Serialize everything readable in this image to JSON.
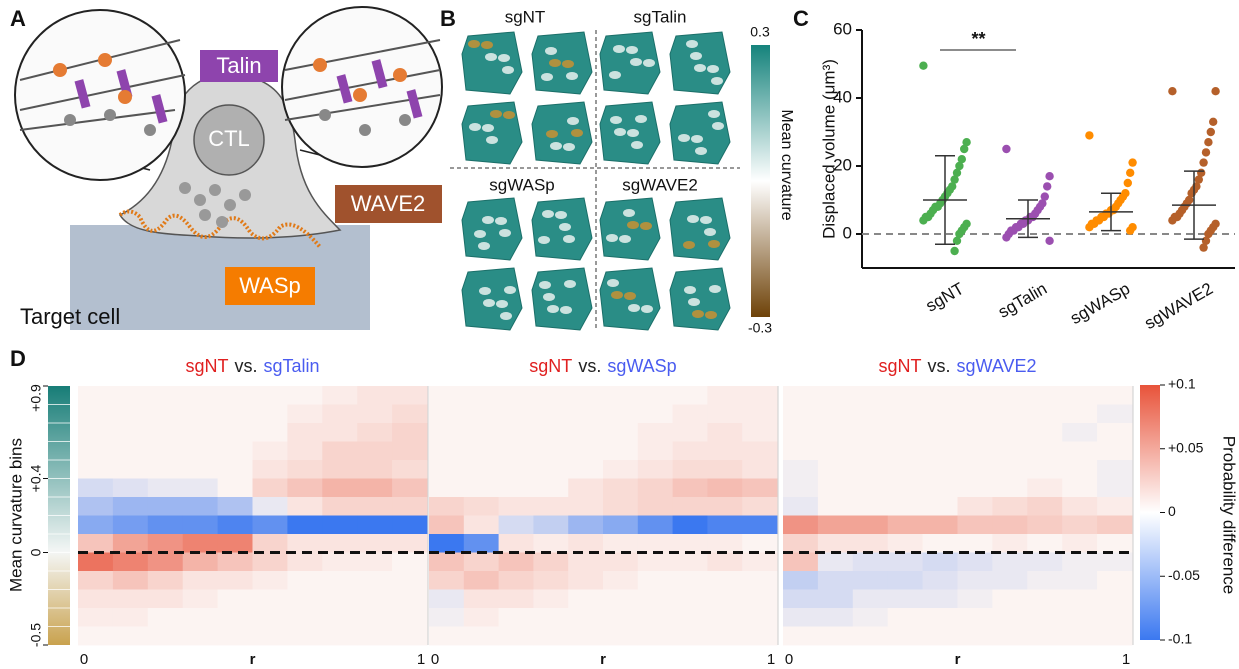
{
  "panel_labels": [
    "A",
    "B",
    "C",
    "D"
  ],
  "panel_a": {
    "talin": "Talin",
    "ctl": "CTL",
    "wave2": "WAVE2",
    "wasp": "WASp",
    "target": "Target cell"
  },
  "panel_b": {
    "groups": [
      "sgNT",
      "sgTalin",
      "sgWASp",
      "sgWAVE2"
    ],
    "colorbar_max": "0.3",
    "colorbar_min": "-0.3",
    "colorbar_label": "Mean curvature"
  },
  "chart_data": [
    {
      "type": "strip",
      "ylabel": "Displaced volume (μm³)",
      "ylim": [
        -10,
        60
      ],
      "yticks": [
        0,
        20,
        40,
        60
      ],
      "categories": [
        "sgNT",
        "sgTalin",
        "sgWASp",
        "sgWAVE2"
      ],
      "significance": "**",
      "series": [
        {
          "color": "#4caf50",
          "values": [
            49.5,
            27,
            25,
            22,
            20,
            18,
            16,
            14,
            13,
            12,
            11,
            10,
            9,
            8,
            8,
            7,
            6,
            5,
            5,
            4,
            3,
            2,
            1,
            0,
            -2,
            -5
          ],
          "mean": 10,
          "sd": 13
        },
        {
          "color": "#9b4fb0",
          "values": [
            25,
            17,
            14,
            11,
            9,
            8,
            7,
            6,
            5,
            5,
            4,
            4,
            3,
            3,
            2,
            2,
            1,
            1,
            0,
            -1,
            -2
          ],
          "mean": 4.5,
          "sd": 5.5
        },
        {
          "color": "#ff8c00",
          "values": [
            29,
            21,
            18,
            15,
            12,
            11,
            10,
            9,
            8,
            7,
            7,
            6,
            6,
            5,
            5,
            4,
            4,
            3,
            3,
            2,
            2,
            1
          ],
          "mean": 6.5,
          "sd": 5.5
        },
        {
          "color": "#b5602a",
          "values": [
            42,
            42,
            33,
            30,
            27,
            24,
            21,
            18,
            16,
            14,
            13,
            12,
            10,
            9,
            8,
            7,
            6,
            5,
            5,
            4,
            3,
            2,
            1,
            0,
            -2,
            -4
          ],
          "mean": 8.5,
          "sd": 10
        }
      ]
    },
    {
      "type": "heatmap",
      "ylabel": "Mean curvature bins",
      "ylim": [
        -0.5,
        0.9
      ],
      "yticks": [
        {
          "value": 0.9,
          "label": "+0.9"
        },
        {
          "value": 0.4,
          "label": "+0.4"
        },
        0,
        -0.5
      ],
      "xlim": [
        0,
        1
      ],
      "xticks": [
        0,
        1
      ],
      "xlabel": "r",
      "colorbar": {
        "label": "Probability difference",
        "lim": [
          -0.1,
          0.1
        ],
        "ticks": [
          {
            "value": 0.1,
            "label": "+0.1"
          },
          {
            "value": 0.05,
            "label": "+0.05"
          },
          0,
          -0.05,
          -0.1
        ]
      },
      "panels": [
        {
          "title": [
            "sgNT",
            "vs.",
            "sgTalin"
          ],
          "title_colors": [
            "#e02020",
            "#222222",
            "#4a5cf0"
          ],
          "values": [
            [
              0,
              0,
              0,
              0,
              0,
              0,
              0,
              0.005,
              0.01,
              0.01
            ],
            [
              0,
              0,
              0,
              0,
              0,
              0,
              0.005,
              0.01,
              0.01,
              0.015
            ],
            [
              0,
              0,
              0,
              0,
              0,
              0,
              0.01,
              0.01,
              0.015,
              0.02
            ],
            [
              0,
              0,
              0,
              0,
              0,
              0.005,
              0.01,
              0.02,
              0.02,
              0.02
            ],
            [
              0,
              0,
              0,
              0,
              0,
              0.01,
              0.015,
              0.02,
              0.02,
              0.015
            ],
            [
              -0.02,
              -0.015,
              -0.01,
              -0.01,
              0,
              0.02,
              0.03,
              0.04,
              0.04,
              0.03
            ],
            [
              -0.04,
              -0.05,
              -0.05,
              -0.05,
              -0.04,
              -0.01,
              0.01,
              0.02,
              0.02,
              0.02
            ],
            [
              -0.06,
              -0.07,
              -0.08,
              -0.08,
              -0.09,
              -0.08,
              -0.1,
              -0.1,
              -0.1,
              -0.1
            ],
            [
              0.03,
              0.05,
              0.06,
              0.07,
              0.07,
              0.02,
              0.01,
              0.01,
              0.01,
              0.01
            ],
            [
              0.08,
              0.07,
              0.06,
              0.04,
              0.03,
              0.02,
              0.01,
              0.005,
              0.005,
              0
            ],
            [
              0.02,
              0.03,
              0.02,
              0.01,
              0.01,
              0.005,
              0,
              0,
              0,
              0
            ],
            [
              0.01,
              0.01,
              0.01,
              0.005,
              0,
              0,
              0,
              0,
              0,
              0
            ],
            [
              0.005,
              0.005,
              0,
              0,
              0,
              0,
              0,
              0,
              0,
              0
            ],
            [
              0,
              0,
              0,
              0,
              0,
              0,
              0,
              0,
              0,
              0
            ]
          ]
        },
        {
          "title": [
            "sgNT",
            "vs.",
            "sgWASp"
          ],
          "title_colors": [
            "#e02020",
            "#222222",
            "#4a5cf0"
          ],
          "values": [
            [
              0,
              0,
              0,
              0,
              0,
              0,
              0,
              0,
              0.005,
              0.005
            ],
            [
              0,
              0,
              0,
              0,
              0,
              0,
              0,
              0.005,
              0.005,
              0.005
            ],
            [
              0,
              0,
              0,
              0,
              0,
              0,
              0.005,
              0.005,
              0.01,
              0.005
            ],
            [
              0,
              0,
              0,
              0,
              0,
              0,
              0.005,
              0.01,
              0.01,
              0.01
            ],
            [
              0,
              0,
              0,
              0,
              0,
              0.005,
              0.01,
              0.015,
              0.015,
              0.01
            ],
            [
              0,
              0,
              0,
              0,
              0.01,
              0.015,
              0.02,
              0.03,
              0.035,
              0.03
            ],
            [
              0.02,
              0.015,
              0.01,
              0.01,
              0.01,
              0.015,
              0.02,
              0.02,
              0.02,
              0.015
            ],
            [
              0.03,
              0.01,
              -0.02,
              -0.03,
              -0.05,
              -0.06,
              -0.08,
              -0.1,
              -0.09,
              -0.09
            ],
            [
              -0.1,
              -0.08,
              0.01,
              0.005,
              0.01,
              0.005,
              0.005,
              0.005,
              0.005,
              0
            ],
            [
              0.03,
              0.02,
              0.03,
              0.02,
              0.01,
              0.01,
              0.005,
              0.005,
              0.01,
              0.005
            ],
            [
              0.02,
              0.03,
              0.02,
              0.015,
              0.01,
              0.005,
              0,
              0,
              0,
              0
            ],
            [
              -0.01,
              0.01,
              0.01,
              0.005,
              0,
              0,
              0,
              0,
              0,
              0
            ],
            [
              -0.005,
              0.005,
              0,
              0,
              0,
              0,
              0,
              0,
              0,
              0
            ],
            [
              0,
              0,
              0,
              0,
              0,
              0,
              0,
              0,
              0,
              0
            ]
          ]
        },
        {
          "title": [
            "sgNT",
            "vs.",
            "sgWAVE2"
          ],
          "title_colors": [
            "#e02020",
            "#222222",
            "#4a5cf0"
          ],
          "values": [
            [
              0,
              0,
              0,
              0,
              0,
              0,
              0,
              0,
              0,
              0
            ],
            [
              0,
              0,
              0,
              0,
              0,
              0,
              0,
              0,
              0,
              -0.005
            ],
            [
              0,
              0,
              0,
              0,
              0,
              0,
              0,
              0,
              -0.005,
              0
            ],
            [
              0,
              0,
              0,
              0,
              0,
              0,
              0,
              0,
              0,
              0
            ],
            [
              -0.005,
              0,
              0,
              0,
              0,
              0,
              0,
              0,
              0,
              -0.005
            ],
            [
              -0.005,
              0,
              0,
              0,
              0,
              0,
              0,
              0.005,
              0,
              -0.005
            ],
            [
              -0.01,
              0,
              0,
              0,
              0,
              0.01,
              0.015,
              0.02,
              0.01,
              0.005
            ],
            [
              0.06,
              0.05,
              0.05,
              0.04,
              0.04,
              0.03,
              0.03,
              0.025,
              0.02,
              0.025
            ],
            [
              0.02,
              0.01,
              0.01,
              0.005,
              0,
              0,
              0.005,
              0,
              0.005,
              0
            ],
            [
              0.03,
              -0.01,
              -0.015,
              -0.015,
              -0.02,
              -0.015,
              -0.01,
              -0.01,
              -0.005,
              -0.005
            ],
            [
              -0.03,
              -0.02,
              -0.02,
              -0.02,
              -0.015,
              -0.01,
              -0.01,
              -0.005,
              -0.005,
              0
            ],
            [
              -0.02,
              -0.02,
              -0.01,
              -0.01,
              -0.01,
              -0.005,
              0,
              0,
              0,
              0
            ],
            [
              -0.01,
              -0.01,
              -0.005,
              0,
              0,
              0,
              0,
              0,
              0,
              0
            ],
            [
              0,
              0,
              0,
              0,
              0,
              0,
              0,
              0,
              0,
              0
            ]
          ]
        }
      ]
    }
  ]
}
